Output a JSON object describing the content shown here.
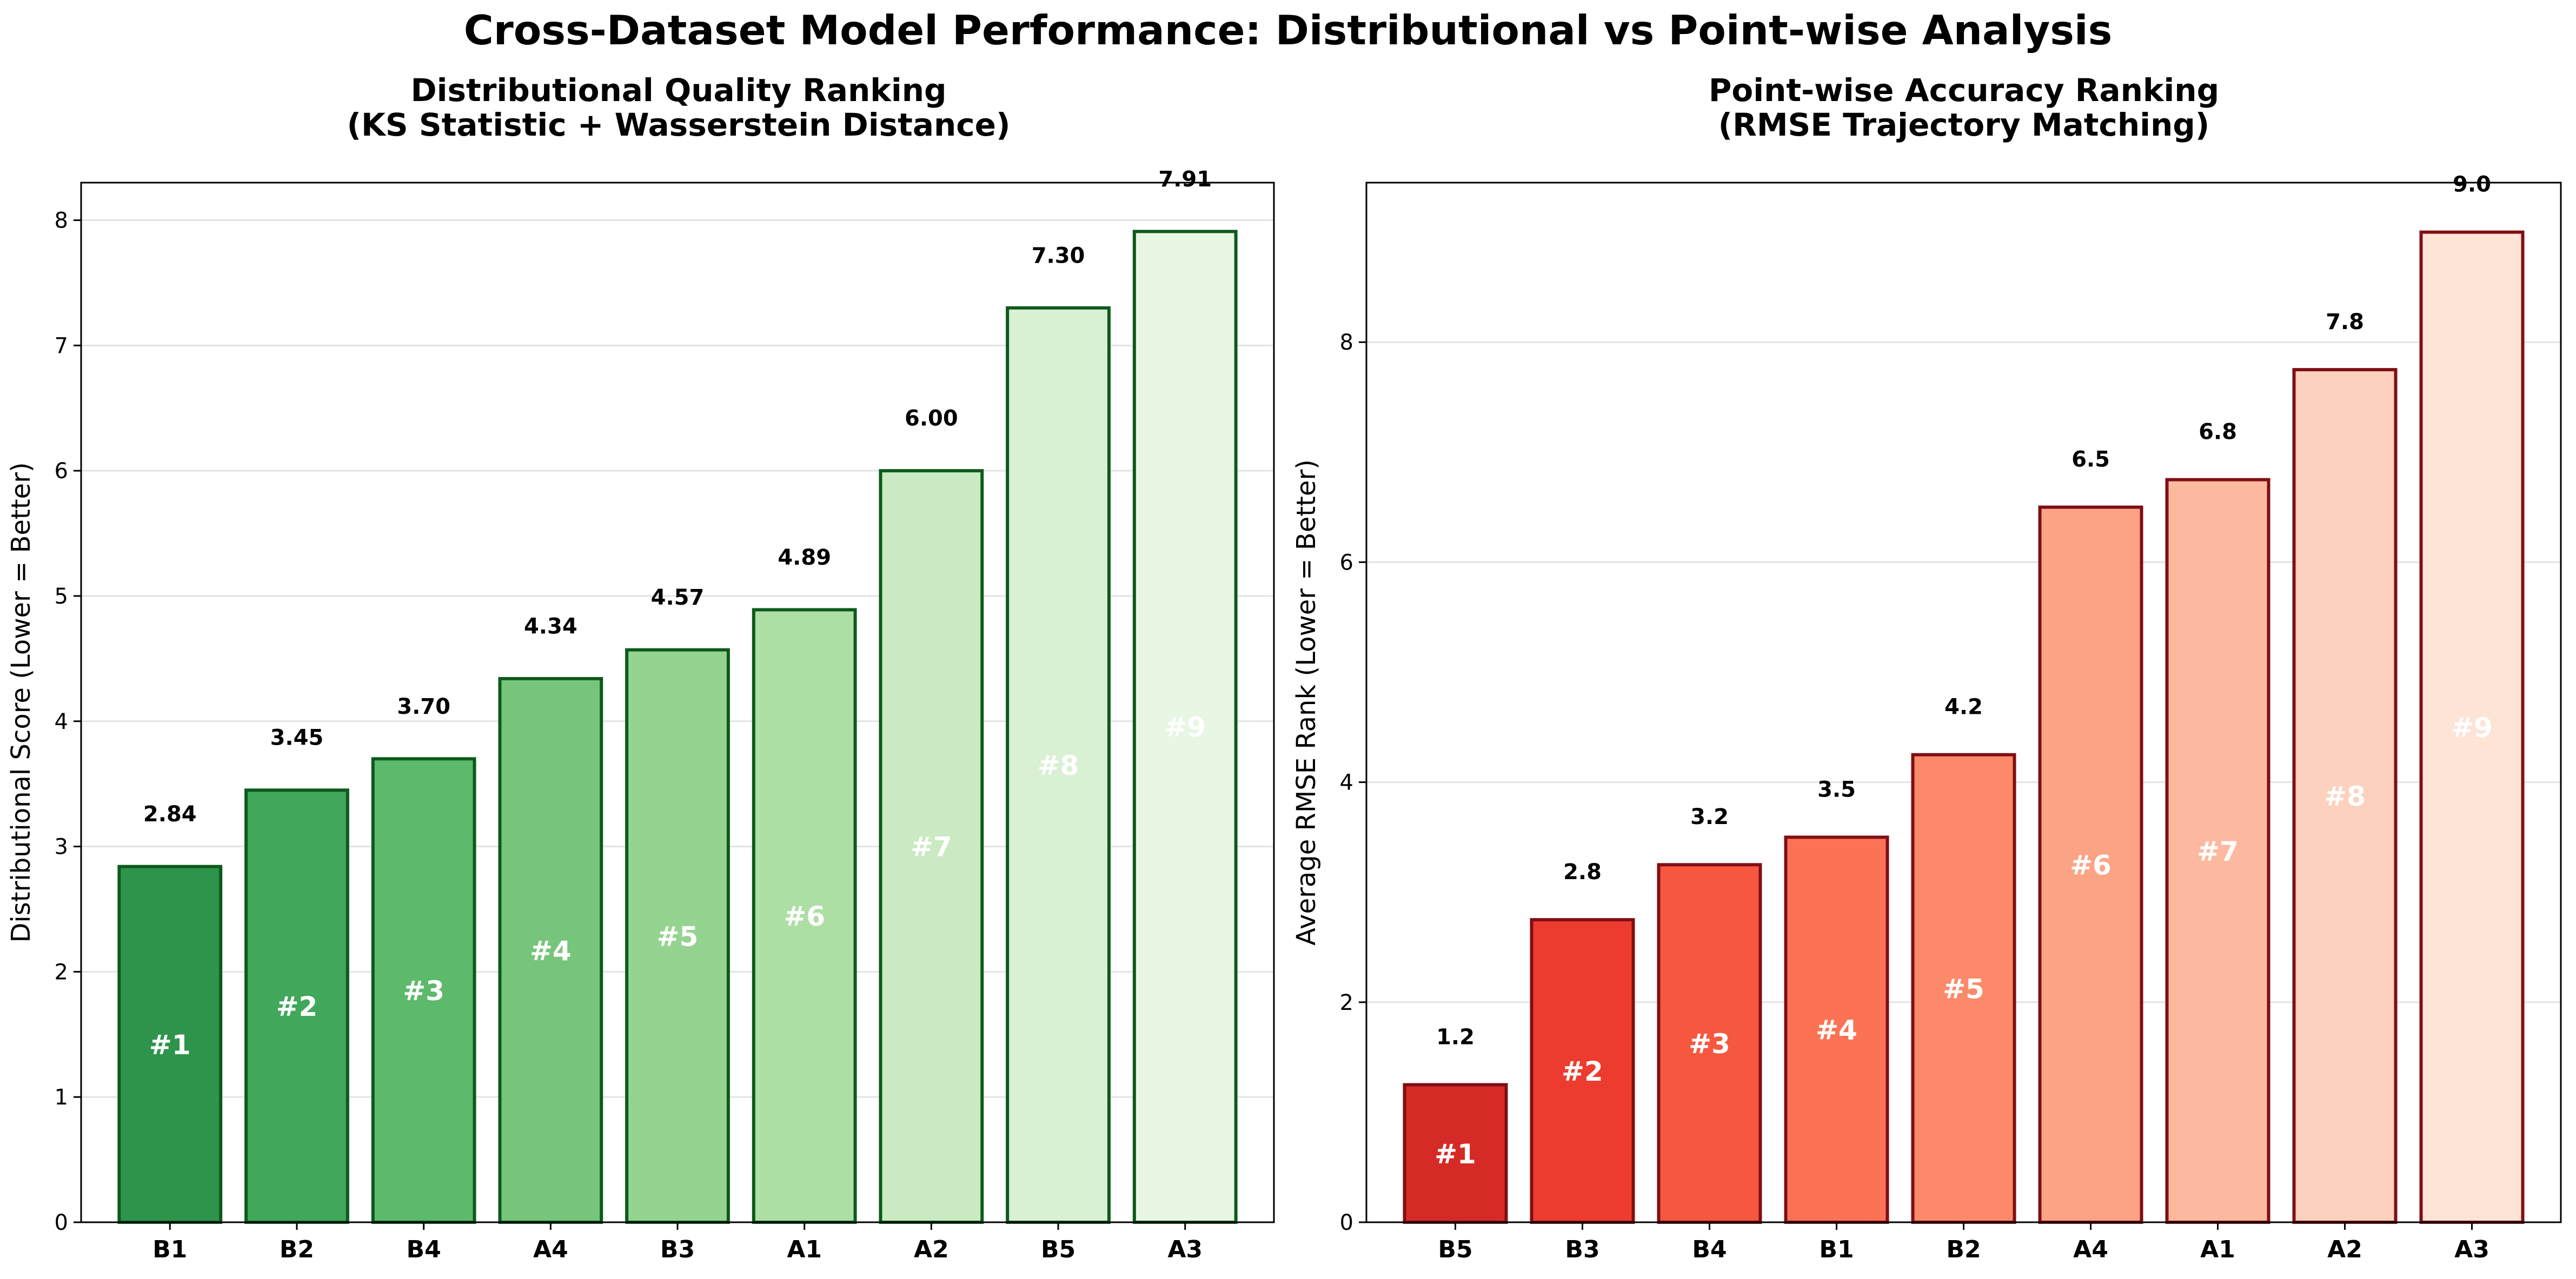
{
  "figure_title": "Cross-Dataset Model Performance: Distributional vs Point-wise Analysis",
  "chart_data": [
    {
      "type": "bar",
      "title_lines": [
        "Distributional Quality Ranking",
        "(KS Statistic + Wasserstein Distance)"
      ],
      "ylabel": "Distributional Score (Lower = Better)",
      "categories": [
        "B1",
        "B2",
        "B4",
        "A4",
        "B3",
        "A1",
        "A2",
        "B5",
        "A3"
      ],
      "values": [
        2.84,
        3.45,
        3.7,
        4.34,
        4.57,
        4.89,
        6.0,
        7.3,
        7.91
      ],
      "value_labels": [
        "2.84",
        "3.45",
        "3.70",
        "4.34",
        "4.57",
        "4.89",
        "6.00",
        "7.30",
        "7.91"
      ],
      "rank_labels": [
        "#1",
        "#2",
        "#3",
        "#4",
        "#5",
        "#6",
        "#7",
        "#8",
        "#9"
      ],
      "ylim": [
        0,
        8.3
      ],
      "yticks": [
        0,
        1,
        2,
        3,
        4,
        5,
        6,
        7,
        8
      ],
      "grid": true,
      "bar_colors": [
        "#2e944b",
        "#40a75b",
        "#5db96b",
        "#76c57a",
        "#95d391",
        "#addfa5",
        "#c9eac2",
        "#d9f0d3",
        "#e8f6e4"
      ],
      "edge_color": "#0c5a1c"
    },
    {
      "type": "bar",
      "title_lines": [
        "Point-wise Accuracy Ranking",
        "(RMSE Trajectory Matching)"
      ],
      "ylabel": "Average RMSE Rank (Lower = Better)",
      "categories": [
        "B5",
        "B3",
        "B4",
        "B1",
        "B2",
        "A4",
        "A1",
        "A2",
        "A3"
      ],
      "values": [
        1.25,
        2.75,
        3.25,
        3.5,
        4.25,
        6.5,
        6.75,
        7.75,
        9.0
      ],
      "value_labels": [
        "1.2",
        "2.8",
        "3.2",
        "3.5",
        "4.2",
        "6.5",
        "6.8",
        "7.8",
        "9.0"
      ],
      "rank_labels": [
        "#1",
        "#2",
        "#3",
        "#4",
        "#5",
        "#6",
        "#7",
        "#8",
        "#9"
      ],
      "ylim": [
        0,
        9.45
      ],
      "yticks": [
        0,
        2,
        4,
        6,
        8
      ],
      "grid": true,
      "bar_colors": [
        "#d62a26",
        "#ee3b2f",
        "#f6573f",
        "#fb7354",
        "#fc8a6a",
        "#fca386",
        "#fcb99f",
        "#fdd1bd",
        "#fee3d7"
      ],
      "edge_color": "#7f0f15"
    }
  ]
}
